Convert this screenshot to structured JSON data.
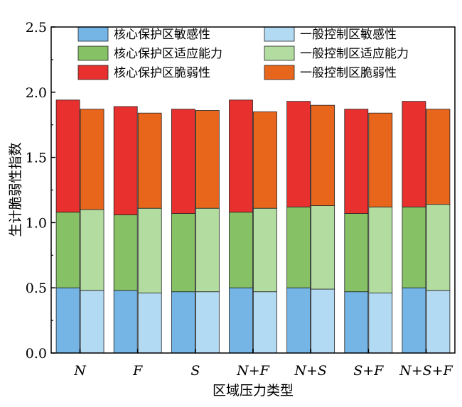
{
  "chart_data": {
    "type": "bar",
    "stacked": true,
    "grouped": true,
    "title": "",
    "xlabel": "区域压力类型",
    "ylabel": "生计脆弱性指数",
    "ylim": [
      0,
      2.5
    ],
    "yticks": [
      "0.0",
      "0.5",
      "1.0",
      "1.5",
      "2.0",
      "2.5"
    ],
    "categories": [
      "N",
      "F",
      "S",
      "N+F",
      "N+S",
      "S+F",
      "N+S+F"
    ],
    "legend_position": "top",
    "grid": false,
    "groups": [
      {
        "name": "核心保护区",
        "series": [
          {
            "name": "核心保护区敏感性",
            "color": "#74b5e6",
            "values": [
              0.5,
              0.48,
              0.47,
              0.5,
              0.5,
              0.47,
              0.5
            ]
          },
          {
            "name": "核心保护区适应能力",
            "color": "#86c166",
            "values": [
              0.58,
              0.58,
              0.6,
              0.58,
              0.62,
              0.6,
              0.62
            ]
          },
          {
            "name": "核心保护区脆弱性",
            "color": "#e8302e",
            "values": [
              0.86,
              0.83,
              0.8,
              0.86,
              0.81,
              0.8,
              0.81
            ]
          }
        ]
      },
      {
        "name": "一般控制区",
        "series": [
          {
            "name": "一般控制区敏感性",
            "color": "#b3daf3",
            "values": [
              0.48,
              0.46,
              0.47,
              0.47,
              0.49,
              0.46,
              0.48
            ]
          },
          {
            "name": "一般控制区适应能力",
            "color": "#b3dca1",
            "values": [
              0.62,
              0.65,
              0.64,
              0.64,
              0.64,
              0.66,
              0.66
            ]
          },
          {
            "name": "一般控制区脆弱性",
            "color": "#e8661c",
            "values": [
              0.77,
              0.73,
              0.75,
              0.74,
              0.77,
              0.72,
              0.73
            ]
          }
        ]
      }
    ]
  }
}
